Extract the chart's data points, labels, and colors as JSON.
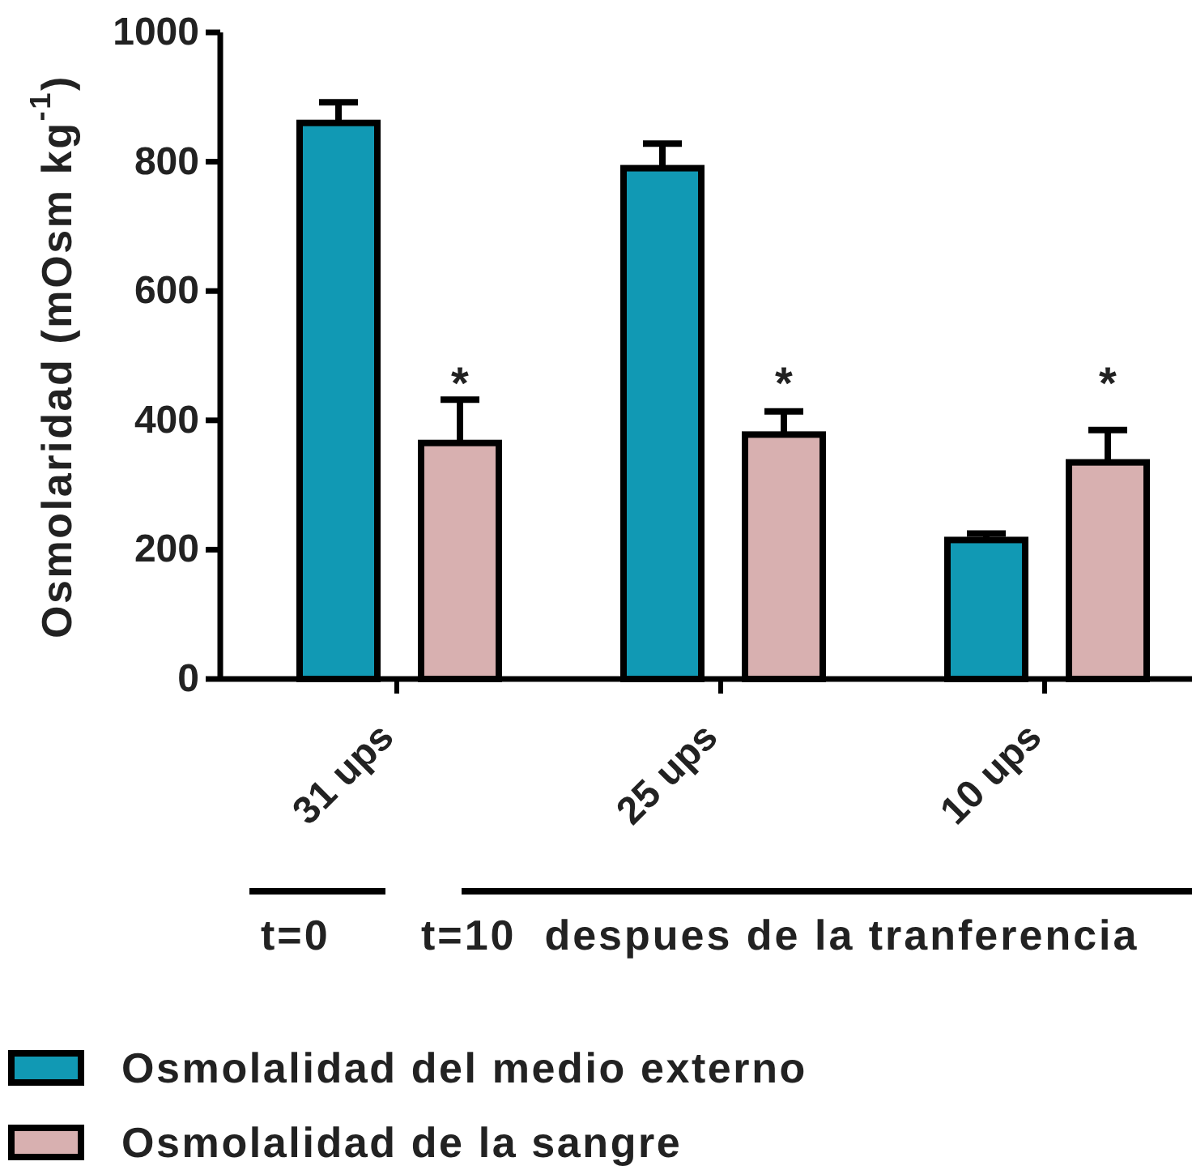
{
  "chart_data": {
    "type": "bar",
    "ylabel": "Osmolaridad (mOsm kg$^{-1}$)",
    "categories": [
      "31 ups",
      "25 ups",
      "10 ups"
    ],
    "series": [
      {
        "name": "Osmolalidad del medio externo",
        "color": "#1199b4",
        "values": [
          860,
          790,
          215
        ],
        "errors": [
          [
            860,
            892
          ],
          [
            790,
            828
          ],
          [
            215,
            225
          ]
        ]
      },
      {
        "name": "Osmolalidad de la sangre",
        "color": "#d8b0b0",
        "values": [
          365,
          378,
          335
        ],
        "errors": [
          [
            365,
            432
          ],
          [
            378,
            414
          ],
          [
            335,
            385
          ]
        ]
      }
    ],
    "ylim": [
      0,
      1000
    ],
    "yticks": [
      0,
      200,
      400,
      600,
      800,
      1000
    ],
    "legend": "bottom",
    "annotations": [
      "*",
      "*",
      "*",
      "t=0",
      "t=10  despues de la tranferencia"
    ]
  }
}
